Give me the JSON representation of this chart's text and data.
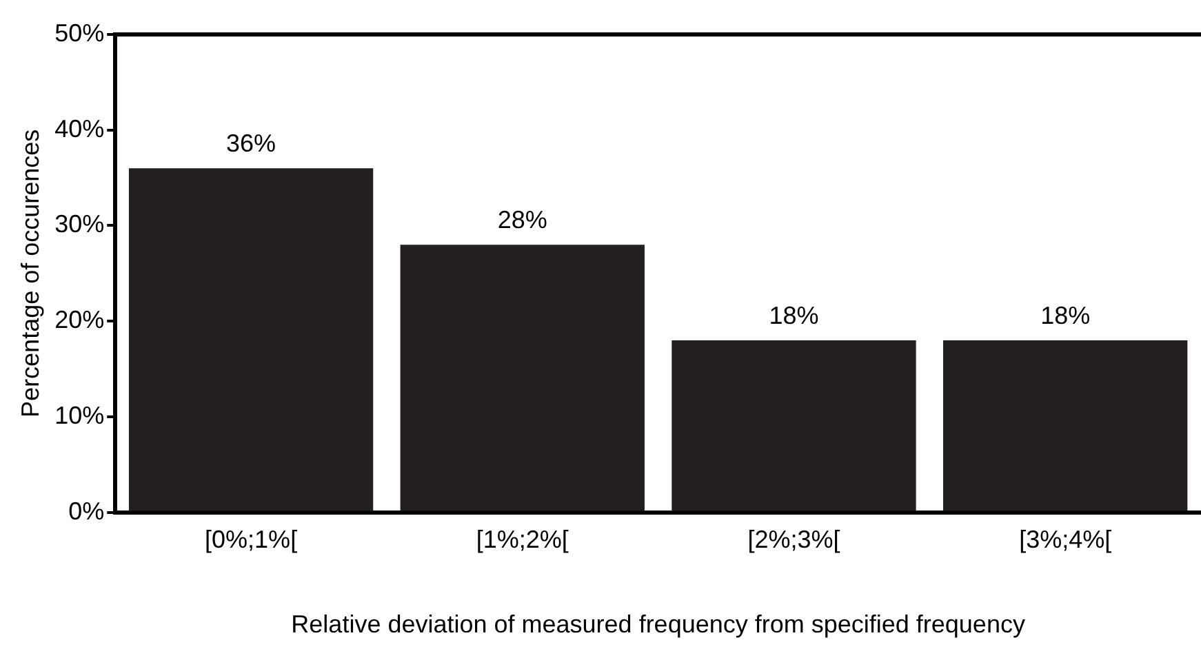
{
  "chart_data": {
    "type": "bar",
    "xlabel": "Relative deviation of measured frequency from specified frequency",
    "ylabel": "Percentage of occurences",
    "categories": [
      "[0%;1%[",
      "[1%;2%[",
      "[2%;3%[",
      "[3%;4%["
    ],
    "values": [
      36,
      28,
      18,
      18
    ],
    "value_labels": [
      "36%",
      "28%",
      "18%",
      "18%"
    ],
    "color": "#231f20",
    "ylim": [
      0,
      50
    ],
    "yticks": [
      {
        "value": 0,
        "label": "0%"
      },
      {
        "value": 10,
        "label": "10%"
      },
      {
        "value": 20,
        "label": "20%"
      },
      {
        "value": 30,
        "label": "30%"
      },
      {
        "value": 40,
        "label": "40%"
      },
      {
        "value": 50,
        "label": "50%"
      }
    ],
    "grid": false,
    "legend": false
  }
}
